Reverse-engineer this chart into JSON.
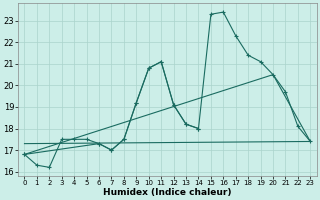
{
  "xlabel": "Humidex (Indice chaleur)",
  "background_color": "#cceee8",
  "line_color": "#1a6b60",
  "grid_color": "#aad4cc",
  "xlim": [
    -0.5,
    23.5
  ],
  "ylim": [
    15.8,
    23.8
  ],
  "yticks": [
    16,
    17,
    18,
    19,
    20,
    21,
    22,
    23
  ],
  "xticks": [
    0,
    1,
    2,
    3,
    4,
    5,
    6,
    7,
    8,
    9,
    10,
    11,
    12,
    13,
    14,
    15,
    16,
    17,
    18,
    19,
    20,
    21,
    22,
    23
  ],
  "series": [
    {
      "x": [
        0,
        1,
        2,
        3,
        4,
        5,
        6,
        7,
        8,
        9,
        10,
        11,
        12,
        13,
        14
      ],
      "y": [
        16.8,
        16.3,
        16.2,
        17.5,
        17.5,
        17.5,
        17.3,
        17.0,
        17.5,
        19.2,
        20.8,
        21.1,
        19.1,
        18.2,
        18.0
      ]
    },
    {
      "x": [
        0,
        6,
        7,
        8,
        9,
        10,
        11,
        12,
        13,
        14,
        15,
        16,
        17,
        18,
        19,
        20,
        21,
        22,
        23
      ],
      "y": [
        16.8,
        17.3,
        17.0,
        17.5,
        19.2,
        20.8,
        21.1,
        19.1,
        18.2,
        18.0,
        23.3,
        23.4,
        22.3,
        21.4,
        21.1,
        20.5,
        19.7,
        18.1,
        17.4
      ]
    },
    {
      "x": [
        0,
        23
      ],
      "y": [
        17.3,
        17.4
      ]
    },
    {
      "x": [
        0,
        20,
        23
      ],
      "y": [
        16.8,
        20.5,
        17.4
      ]
    }
  ]
}
